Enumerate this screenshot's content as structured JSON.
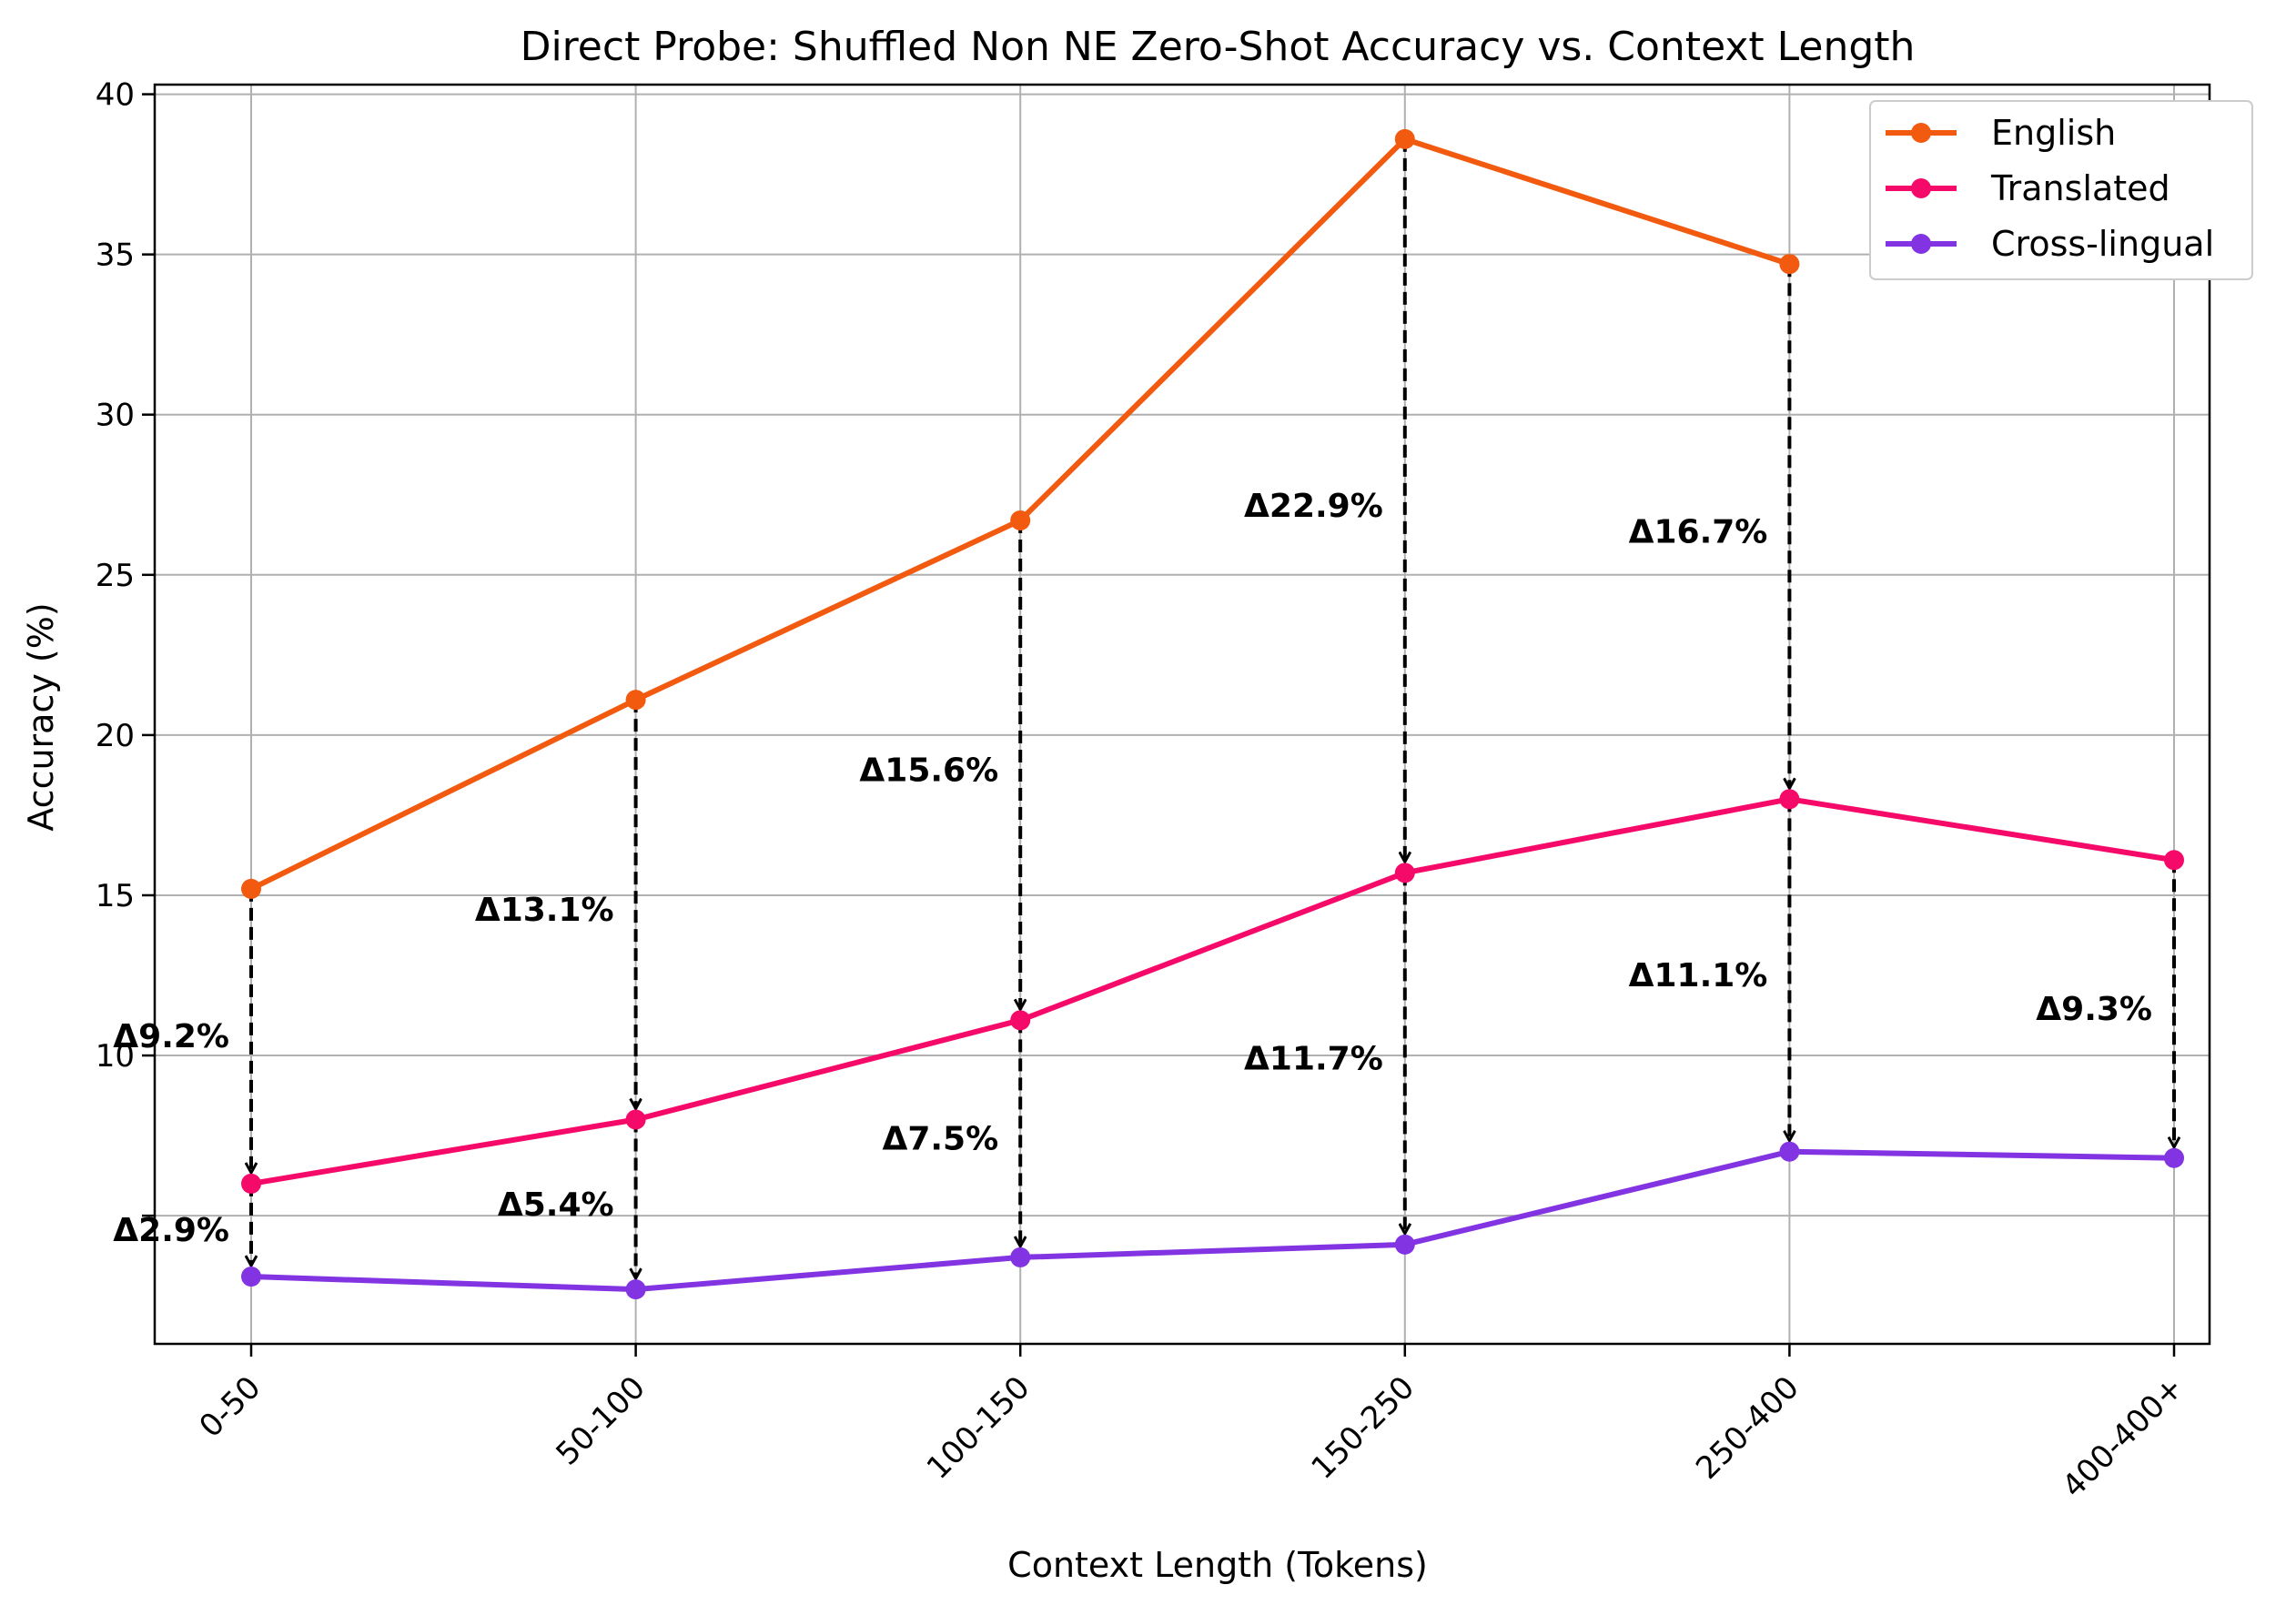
{
  "chart_data": {
    "type": "line",
    "title": "Direct Probe: Shuffled Non NE Zero-Shot Accuracy vs. Context Length",
    "xlabel": "Context Length (Tokens)",
    "ylabel": "Accuracy (%)",
    "categories": [
      "0-50",
      "50-100",
      "100-150",
      "150-250",
      "250-400",
      "400-400+"
    ],
    "ylim": [
      1,
      40.3
    ],
    "yticks": [
      "10",
      "15",
      "20",
      "25",
      "30",
      "35",
      "40"
    ],
    "grid": true,
    "legend_position": "top-right",
    "series": [
      {
        "name": "English",
        "color": "#f25a0f",
        "values": [
          15.2,
          21.1,
          26.7,
          38.6,
          34.7,
          null
        ]
      },
      {
        "name": "Translated",
        "color": "#f50a6a",
        "values": [
          6.0,
          8.0,
          11.1,
          15.7,
          18.0,
          16.1
        ]
      },
      {
        "name": "Cross-lingual",
        "color": "#8334e2",
        "values": [
          3.1,
          2.7,
          3.7,
          4.1,
          7.0,
          6.8
        ]
      }
    ],
    "annotations": [
      {
        "text": "Δ9.2%",
        "category": "0-50",
        "from": 15.2,
        "to": 6.0
      },
      {
        "text": "Δ13.1%",
        "category": "50-100",
        "from": 21.1,
        "to": 8.0
      },
      {
        "text": "Δ15.6%",
        "category": "100-150",
        "from": 26.7,
        "to": 11.1
      },
      {
        "text": "Δ22.9%",
        "category": "150-250",
        "from": 38.6,
        "to": 15.7
      },
      {
        "text": "Δ16.7%",
        "category": "250-400",
        "from": 34.7,
        "to": 18.0
      },
      {
        "text": "Δ2.9%",
        "category": "0-50",
        "from": 6.0,
        "to": 3.1
      },
      {
        "text": "Δ5.4%",
        "category": "50-100",
        "from": 8.0,
        "to": 2.7
      },
      {
        "text": "Δ7.5%",
        "category": "100-150",
        "from": 11.1,
        "to": 3.7
      },
      {
        "text": "Δ11.7%",
        "category": "150-250",
        "from": 15.7,
        "to": 4.1
      },
      {
        "text": "Δ11.1%",
        "category": "250-400",
        "from": 18.0,
        "to": 7.0
      },
      {
        "text": "Δ9.3%",
        "category": "400-400+",
        "from": 16.1,
        "to": 6.8
      }
    ]
  }
}
